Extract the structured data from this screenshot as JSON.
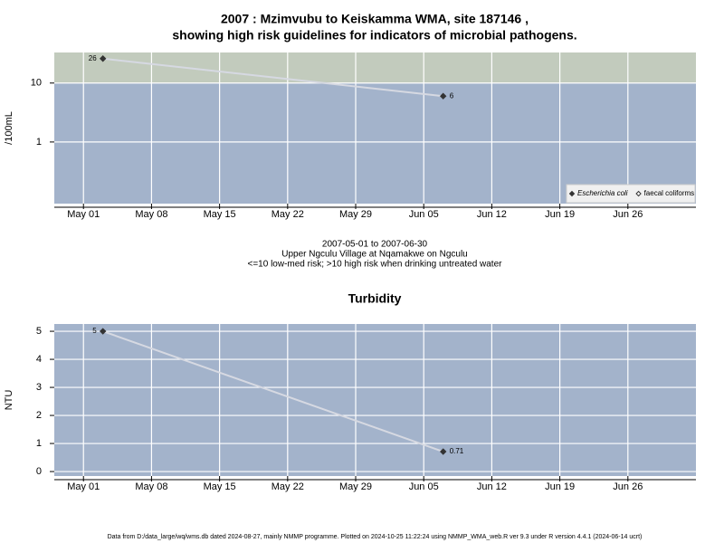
{
  "chart_data": [
    {
      "type": "line",
      "title": [
        "2007 : Mzimvubu to Keiskamma WMA, site 187146 ,",
        "showing high risk guidelines for indicators of microbial pathogens."
      ],
      "y_label": "/100mL",
      "log_y": true,
      "x": [
        "2007-05-03",
        "2007-06-07"
      ],
      "series": [
        {
          "name": "Escherichia coli",
          "color": "#333333",
          "marker": "filled",
          "values": [
            26,
            6
          ]
        },
        {
          "name": "faecal coliforms",
          "color": "#333333",
          "marker": "open",
          "values": [
            null,
            null
          ]
        }
      ],
      "xlim": [
        "2007-04-28",
        "2007-07-03"
      ],
      "xticks": [
        {
          "value": "2007-05-01",
          "label": "May 01"
        },
        {
          "value": "2007-05-08",
          "label": "May 08"
        },
        {
          "value": "2007-05-15",
          "label": "May 15"
        },
        {
          "value": "2007-05-22",
          "label": "May 22"
        },
        {
          "value": "2007-05-29",
          "label": "May 29"
        },
        {
          "value": "2007-06-05",
          "label": "Jun 05"
        },
        {
          "value": "2007-06-12",
          "label": "Jun 12"
        },
        {
          "value": "2007-06-19",
          "label": "Jun 19"
        },
        {
          "value": "2007-06-26",
          "label": "Jun 26"
        }
      ],
      "ylim": [
        0.09,
        33
      ],
      "yticks": [
        1,
        10
      ],
      "guideline": 10,
      "guideline_color": "#c2cbbd",
      "background": "#a3b3cb",
      "line_color": "#d6d9e2",
      "grid": true,
      "legend": "bottom-right",
      "caption": [
        "2007-05-01 to 2007-06-30",
        "Upper Ngculu Village at Nqamakwe on Ngculu",
        "<=10 low-med risk; >10 high risk when drinking untreated water"
      ]
    },
    {
      "type": "line",
      "title": [
        "Turbidity"
      ],
      "y_label": "NTU",
      "log_y": false,
      "x": [
        "2007-05-03",
        "2007-06-07"
      ],
      "series": [
        {
          "name": "Turbidity",
          "color": "#333333",
          "marker": "filled",
          "values": [
            5,
            0.71
          ]
        }
      ],
      "xlim": [
        "2007-04-28",
        "2007-07-03"
      ],
      "xticks": [
        {
          "value": "2007-05-01",
          "label": "May 01"
        },
        {
          "value": "2007-05-08",
          "label": "May 08"
        },
        {
          "value": "2007-05-15",
          "label": "May 15"
        },
        {
          "value": "2007-05-22",
          "label": "May 22"
        },
        {
          "value": "2007-05-29",
          "label": "May 29"
        },
        {
          "value": "2007-06-05",
          "label": "Jun 05"
        },
        {
          "value": "2007-06-12",
          "label": "Jun 12"
        },
        {
          "value": "2007-06-19",
          "label": "Jun 19"
        },
        {
          "value": "2007-06-26",
          "label": "Jun 26"
        }
      ],
      "ylim": [
        -0.16,
        5.26
      ],
      "yticks": [
        0,
        1,
        2,
        3,
        4,
        5
      ],
      "background": "#a3b3cb",
      "line_color": "#d6d9e2",
      "grid": true
    }
  ],
  "footer": "Data from D:/data_large/wq/wms.db dated 2024-08-27, mainly NMMP programme. Plotted on 2024-10-25 11:22:24 using NMMP_WMA_web.R ver 9.3 under R version 4.4.1 (2024-06-14 ucrt)"
}
